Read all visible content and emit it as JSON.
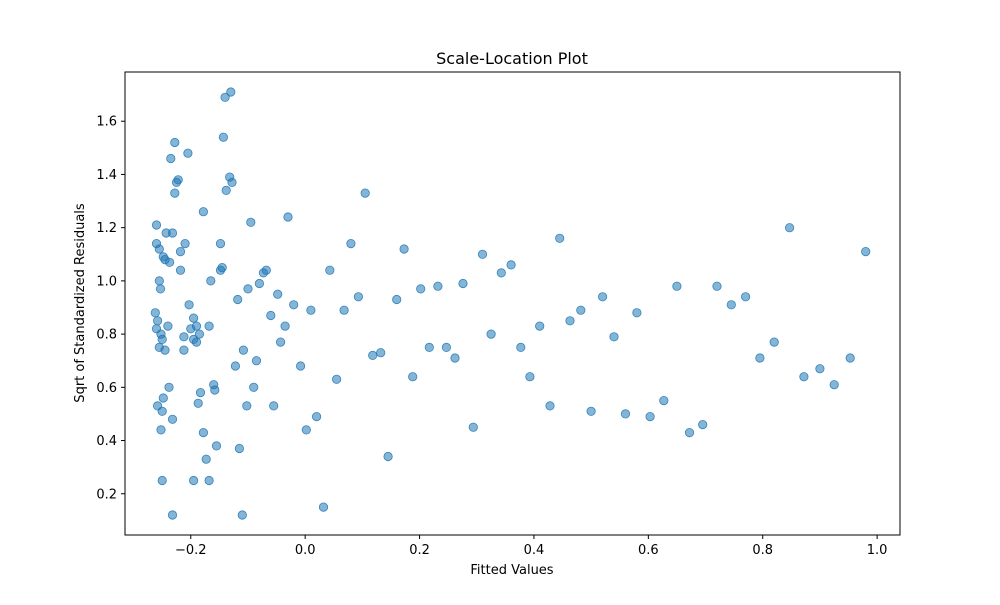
{
  "chart_data": {
    "type": "scatter",
    "title": "Scale-Location Plot",
    "xlabel": "Fitted Values",
    "ylabel": "Sqrt of Standardized Residuals",
    "xlim": [
      -0.315,
      1.04
    ],
    "ylim": [
      0.045,
      1.785
    ],
    "xticks": [
      -0.2,
      0.0,
      0.2,
      0.4,
      0.6,
      0.8,
      1.0
    ],
    "xtick_labels": [
      "−0.2",
      "0.0",
      "0.2",
      "0.4",
      "0.6",
      "0.8",
      "1.0"
    ],
    "yticks": [
      0.2,
      0.4,
      0.6,
      0.8,
      1.0,
      1.2,
      1.4,
      1.6
    ],
    "ytick_labels": [
      "0.2",
      "0.4",
      "0.6",
      "0.8",
      "1.0",
      "1.2",
      "1.4",
      "1.6"
    ],
    "grid": false,
    "legend": "none",
    "marker_color": "#1f77b4",
    "marker_alpha": 0.55,
    "points": [
      [
        -0.26,
        1.21
      ],
      [
        -0.26,
        1.14
      ],
      [
        -0.255,
        1.12
      ],
      [
        -0.255,
        1.0
      ],
      [
        -0.253,
        0.97
      ],
      [
        -0.262,
        0.88
      ],
      [
        -0.258,
        0.85
      ],
      [
        -0.26,
        0.82
      ],
      [
        -0.252,
        0.8
      ],
      [
        -0.25,
        0.78
      ],
      [
        -0.255,
        0.75
      ],
      [
        -0.245,
        0.74
      ],
      [
        -0.24,
        0.83
      ],
      [
        -0.238,
        0.6
      ],
      [
        -0.248,
        0.56
      ],
      [
        -0.258,
        0.53
      ],
      [
        -0.25,
        0.51
      ],
      [
        -0.232,
        0.48
      ],
      [
        -0.252,
        0.44
      ],
      [
        -0.25,
        0.25
      ],
      [
        -0.232,
        0.12
      ],
      [
        -0.235,
        1.46
      ],
      [
        -0.228,
        1.52
      ],
      [
        -0.222,
        1.38
      ],
      [
        -0.225,
        1.37
      ],
      [
        -0.228,
        1.33
      ],
      [
        -0.232,
        1.18
      ],
      [
        -0.243,
        1.18
      ],
      [
        -0.248,
        1.09
      ],
      [
        -0.245,
        1.08
      ],
      [
        -0.237,
        1.07
      ],
      [
        -0.218,
        1.11
      ],
      [
        -0.21,
        1.14
      ],
      [
        -0.218,
        1.04
      ],
      [
        -0.205,
        1.48
      ],
      [
        -0.203,
        0.91
      ],
      [
        -0.195,
        0.86
      ],
      [
        -0.19,
        0.83
      ],
      [
        -0.2,
        0.82
      ],
      [
        -0.212,
        0.79
      ],
      [
        -0.195,
        0.78
      ],
      [
        -0.19,
        0.77
      ],
      [
        -0.185,
        0.8
      ],
      [
        -0.212,
        0.74
      ],
      [
        -0.183,
        0.58
      ],
      [
        -0.187,
        0.54
      ],
      [
        -0.178,
        0.43
      ],
      [
        -0.173,
        0.33
      ],
      [
        -0.195,
        0.25
      ],
      [
        -0.168,
        0.25
      ],
      [
        -0.178,
        1.26
      ],
      [
        -0.168,
        0.83
      ],
      [
        -0.165,
        1.0
      ],
      [
        -0.16,
        0.61
      ],
      [
        -0.158,
        0.59
      ],
      [
        -0.155,
        0.38
      ],
      [
        -0.148,
        1.04
      ],
      [
        -0.145,
        1.05
      ],
      [
        -0.148,
        1.14
      ],
      [
        -0.143,
        1.54
      ],
      [
        -0.14,
        1.69
      ],
      [
        -0.13,
        1.71
      ],
      [
        -0.132,
        1.39
      ],
      [
        -0.128,
        1.37
      ],
      [
        -0.138,
        1.34
      ],
      [
        -0.122,
        0.68
      ],
      [
        -0.118,
        0.93
      ],
      [
        -0.115,
        0.37
      ],
      [
        -0.11,
        0.12
      ],
      [
        -0.108,
        0.74
      ],
      [
        -0.102,
        0.53
      ],
      [
        -0.1,
        0.97
      ],
      [
        -0.095,
        1.22
      ],
      [
        -0.09,
        0.6
      ],
      [
        -0.085,
        0.7
      ],
      [
        -0.08,
        0.99
      ],
      [
        -0.073,
        1.03
      ],
      [
        -0.068,
        1.04
      ],
      [
        -0.06,
        0.87
      ],
      [
        -0.055,
        0.53
      ],
      [
        -0.048,
        0.95
      ],
      [
        -0.043,
        0.77
      ],
      [
        -0.035,
        0.83
      ],
      [
        -0.03,
        1.24
      ],
      [
        -0.02,
        0.91
      ],
      [
        -0.008,
        0.68
      ],
      [
        0.002,
        0.44
      ],
      [
        0.01,
        0.89
      ],
      [
        0.02,
        0.49
      ],
      [
        0.032,
        0.15
      ],
      [
        0.043,
        1.04
      ],
      [
        0.055,
        0.63
      ],
      [
        0.068,
        0.89
      ],
      [
        0.08,
        1.14
      ],
      [
        0.093,
        0.94
      ],
      [
        0.105,
        1.33
      ],
      [
        0.118,
        0.72
      ],
      [
        0.132,
        0.73
      ],
      [
        0.145,
        0.34
      ],
      [
        0.16,
        0.93
      ],
      [
        0.173,
        1.12
      ],
      [
        0.188,
        0.64
      ],
      [
        0.202,
        0.97
      ],
      [
        0.217,
        0.75
      ],
      [
        0.232,
        0.98
      ],
      [
        0.247,
        0.75
      ],
      [
        0.262,
        0.71
      ],
      [
        0.276,
        0.99
      ],
      [
        0.294,
        0.45
      ],
      [
        0.31,
        1.1
      ],
      [
        0.325,
        0.8
      ],
      [
        0.343,
        1.03
      ],
      [
        0.36,
        1.06
      ],
      [
        0.377,
        0.75
      ],
      [
        0.393,
        0.64
      ],
      [
        0.41,
        0.83
      ],
      [
        0.428,
        0.53
      ],
      [
        0.445,
        1.16
      ],
      [
        0.463,
        0.85
      ],
      [
        0.482,
        0.89
      ],
      [
        0.5,
        0.51
      ],
      [
        0.52,
        0.94
      ],
      [
        0.54,
        0.79
      ],
      [
        0.56,
        0.5
      ],
      [
        0.58,
        0.88
      ],
      [
        0.603,
        0.49
      ],
      [
        0.627,
        0.55
      ],
      [
        0.65,
        0.98
      ],
      [
        0.672,
        0.43
      ],
      [
        0.695,
        0.46
      ],
      [
        0.72,
        0.98
      ],
      [
        0.745,
        0.91
      ],
      [
        0.77,
        0.94
      ],
      [
        0.795,
        0.71
      ],
      [
        0.82,
        0.77
      ],
      [
        0.847,
        1.2
      ],
      [
        0.872,
        0.64
      ],
      [
        0.9,
        0.67
      ],
      [
        0.925,
        0.61
      ],
      [
        0.953,
        0.71
      ],
      [
        0.98,
        1.11
      ]
    ]
  }
}
